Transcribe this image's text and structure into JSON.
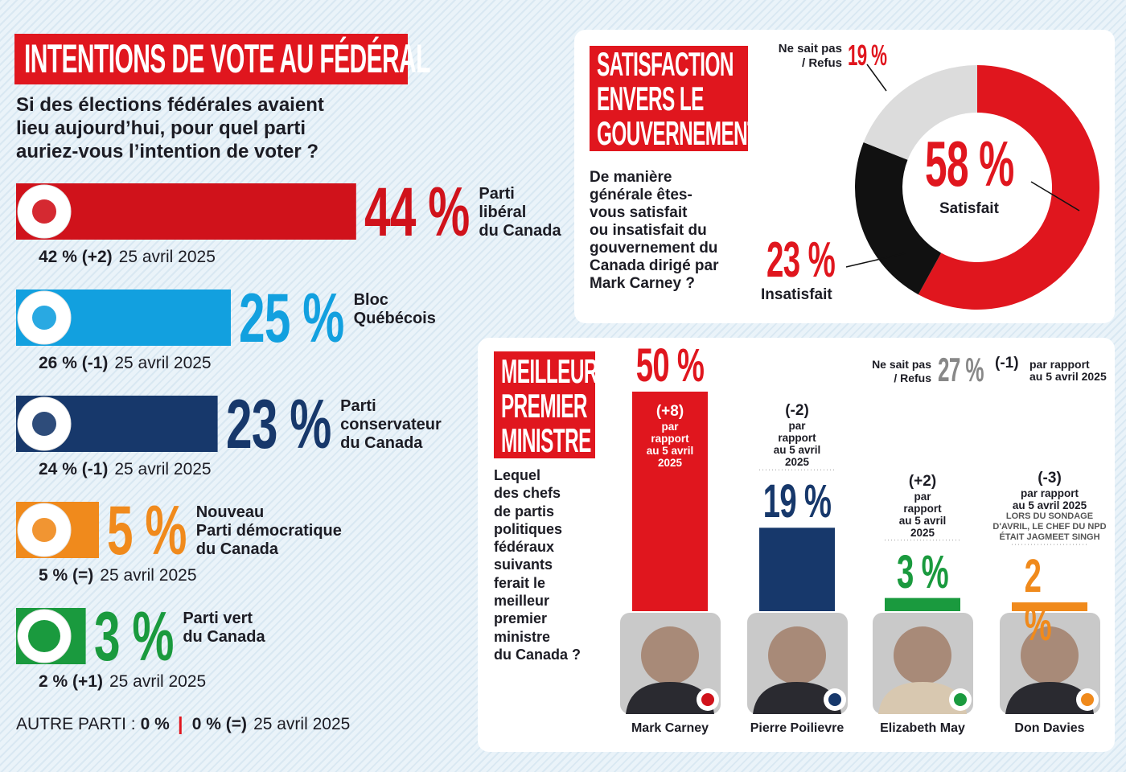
{
  "chart_data": [
    {
      "type": "bar",
      "orientation": "horizontal",
      "title": "INTENTIONS DE VOTE AU FÉDÉRAL",
      "subtitle": "Si des élections fédérales avaient\nlieu aujourd’hui, pour quel parti\nauriez-vous l’intention de voter ?",
      "categories": [
        "Parti\nlibéral\ndu Canada",
        "Bloc\nQuébécois",
        "Parti\nconservateur\ndu Canada",
        "Nouveau\nParti démocratique\ndu Canada",
        "Parti vert\ndu Canada"
      ],
      "values": [
        44,
        25,
        23,
        5,
        3
      ],
      "value_labels": [
        "44 %",
        "25 %",
        "23 %",
        "5 %",
        "3 %"
      ],
      "colors": [
        "#d0121b",
        "#12a0df",
        "#17386b",
        "#f08a1c",
        "#1a9a3e"
      ],
      "previous": [
        "42 % (+2)",
        "26 % (-1)",
        "24 % (-1)",
        "5 % (=)",
        "2 % (+1)"
      ],
      "previous_dates": [
        "25 avril 2025",
        "25 avril 2025",
        "25 avril 2025",
        "25 avril 2025",
        "25 avril 2025"
      ],
      "other": {
        "label": "AUTRE PARTI :",
        "value_label": "0 %",
        "previous": "0 % (=)",
        "previous_date": "25 avril 2025"
      }
    },
    {
      "type": "pie",
      "donut": true,
      "title": "SATISFACTION\nENVERS LE\nGOUVERNEMENT",
      "subtitle": "De manière\ngénérale êtes-\nvous satisfait\nou insatisfait du\ngouvernement du\nCanada dirigé par\nMark Carney ?",
      "categories": [
        "Satisfait",
        "Insatisfait",
        "Ne sait pas\n/ Refus"
      ],
      "values": [
        58,
        23,
        19
      ],
      "value_labels": [
        "58 %",
        "23 %",
        "19 %"
      ],
      "colors": [
        "#e0161e",
        "#111111",
        "#dcdcdc"
      ]
    },
    {
      "type": "bar",
      "orientation": "vertical",
      "title": "MEILLEUR\nPREMIER\nMINISTRE",
      "subtitle": "Lequel\ndes chefs\nde partis\npolitiques\nfédéraux\nsuivants\nferait le\nmeilleur\npremier\nministre\ndu Canada ?",
      "categories": [
        "Mark Carney",
        "Pierre Poilievre",
        "Elizabeth May",
        "Don Davies"
      ],
      "values": [
        50,
        19,
        3,
        2
      ],
      "value_labels": [
        "50 %",
        "19 %",
        "3 %",
        "2 %"
      ],
      "colors": [
        "#e0161e",
        "#17386b",
        "#1a9a3e",
        "#f08a1c"
      ],
      "changes": [
        "(+8)",
        "(-2)",
        "(+2)",
        "(-3)"
      ],
      "change_notes": [
        "par\nrapport\nau 5 avril\n2025",
        "par\nrapport\nau 5 avril\n2025",
        "par\nrapport\nau 5 avril\n2025",
        "par rapport\nau 5 avril 2025"
      ],
      "notes": [
        null,
        null,
        null,
        "LORS DU SONDAGE\nD'AVRIL, LE CHEF DU NPD\nÉTAIT JAGMEET SINGH"
      ],
      "undecided": {
        "label": "Ne sait pas\n/ Refus",
        "value_label": "27 %",
        "change": "(-1)",
        "change_note": "par rapport\nau 5 avril 2025"
      }
    }
  ]
}
